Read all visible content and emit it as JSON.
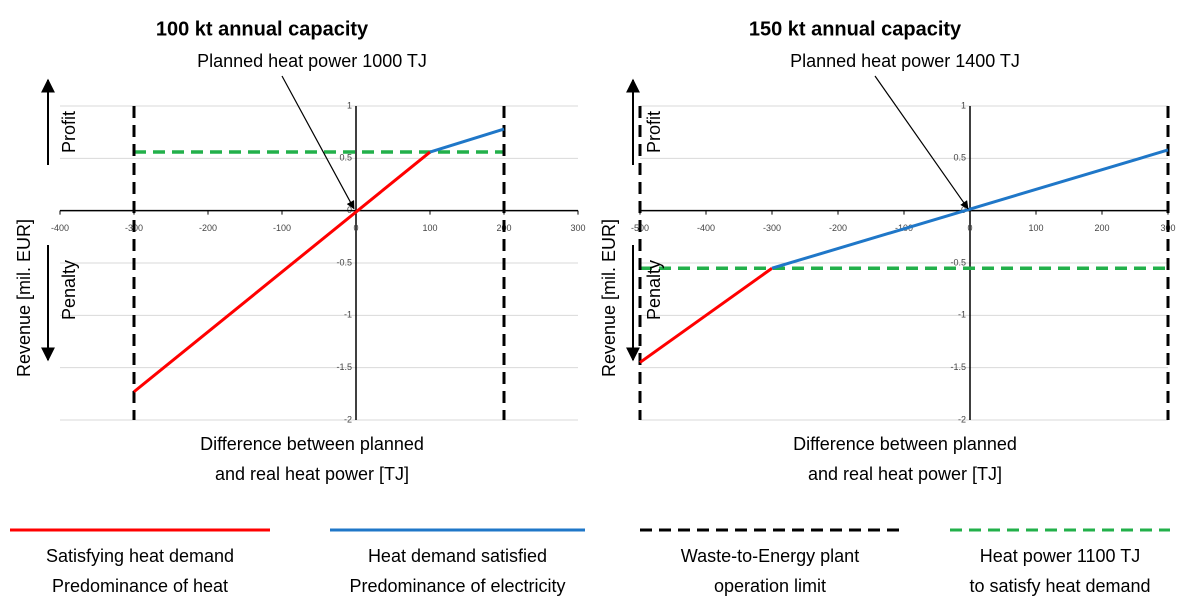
{
  "chart_data": [
    {
      "type": "line",
      "title": "100 kt annual capacity",
      "annotation": "Planned heat power 1000 TJ",
      "y_label": "Revenue [mil. EUR]",
      "profit_label": "Profit",
      "penalty_label": "Penalty",
      "x_label": [
        "Difference between planned",
        "and real heat power  [TJ]"
      ],
      "xlim": [
        -400,
        300
      ],
      "xticks": [
        -400,
        -300,
        -200,
        -100,
        0,
        100,
        200,
        300
      ],
      "ylim": [
        -2,
        1
      ],
      "yticks": [
        -2,
        -1.5,
        -1,
        -0.5,
        0,
        0.5,
        1
      ],
      "grid": true,
      "series": [
        {
          "color": "#ff0000",
          "x": [
            -300,
            100
          ],
          "values": [
            -1.73,
            0.56
          ]
        },
        {
          "color": "#1f77c8",
          "x": [
            100,
            200
          ],
          "values": [
            0.56,
            0.78
          ]
        }
      ],
      "vlines": {
        "color": "#000000",
        "x": [
          -300,
          200
        ]
      },
      "hline": {
        "color": "#22b04a",
        "y": 0.56,
        "x": [
          -300,
          200
        ]
      }
    },
    {
      "type": "line",
      "title": "150 kt annual capacity",
      "annotation": "Planned heat power 1400 TJ",
      "y_label": "Revenue [mil. EUR]",
      "profit_label": "Profit",
      "penalty_label": "Penalty",
      "x_label": [
        "Difference between planned",
        "and real heat power  [TJ]"
      ],
      "xlim": [
        -500,
        300
      ],
      "xticks": [
        -500,
        -400,
        -300,
        -200,
        -100,
        0,
        100,
        200,
        300
      ],
      "ylim": [
        -2,
        1
      ],
      "yticks": [
        -2,
        -1.5,
        -1,
        -0.5,
        0,
        0.5,
        1
      ],
      "grid": true,
      "series": [
        {
          "color": "#ff0000",
          "x": [
            -500,
            -300
          ],
          "values": [
            -1.45,
            -0.55
          ]
        },
        {
          "color": "#1f77c8",
          "x": [
            -300,
            300
          ],
          "values": [
            -0.55,
            0.58
          ]
        }
      ],
      "vlines": {
        "color": "#000000",
        "x": [
          -500,
          300
        ]
      },
      "hline": {
        "color": "#22b04a",
        "y": -0.55,
        "x": [
          -500,
          300
        ]
      }
    }
  ],
  "legend": [
    {
      "lines": [
        "Satisfying heat demand",
        "Predominance of heat"
      ],
      "color": "#ff0000",
      "style": "solid"
    },
    {
      "lines": [
        "Heat demand satisfied",
        "Predominance of electricity"
      ],
      "color": "#1f77c8",
      "style": "solid"
    },
    {
      "lines": [
        "Waste-to-Energy plant",
        "operation limit"
      ],
      "color": "#000000",
      "style": "dashed"
    },
    {
      "lines": [
        "Heat power 1100 TJ",
        "to satisfy heat demand"
      ],
      "color": "#22b04a",
      "style": "dashed"
    }
  ]
}
